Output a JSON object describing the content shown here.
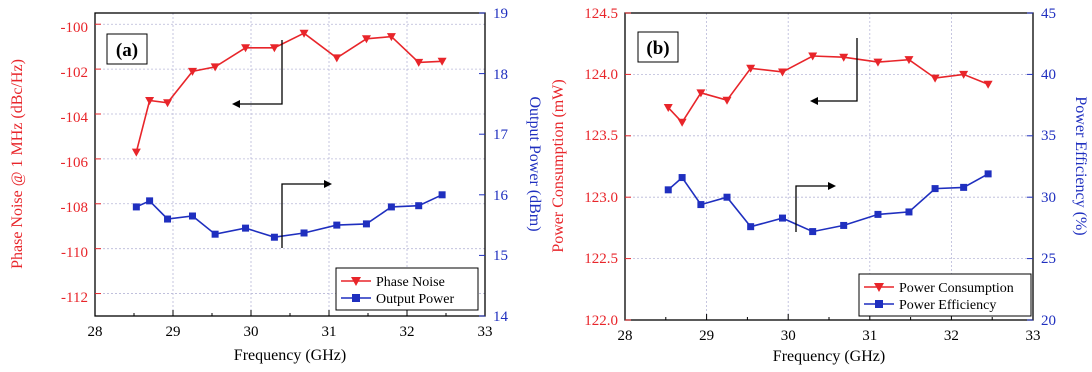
{
  "chart_data": [
    {
      "type": "line",
      "panel_label": "(a)",
      "xlabel": "Frequency (GHz)",
      "xlim": [
        28,
        33
      ],
      "xticks": [
        "28",
        "29",
        "30",
        "31",
        "32",
        "33"
      ],
      "x": [
        28.53,
        28.7,
        28.93,
        29.25,
        29.54,
        29.93,
        30.3,
        30.68,
        31.1,
        31.48,
        31.8,
        32.15,
        32.45
      ],
      "left_axis": {
        "label": "Phase Noise @ 1 MHz (dBc/Hz)",
        "color": "#e8252a",
        "ylim": [
          -113,
          -99.5
        ],
        "ticks": [
          "-112",
          "-110",
          "-108",
          "-106",
          "-104",
          "-102",
          "-100"
        ]
      },
      "right_axis": {
        "label": "Output Power (dBm)",
        "color": "#1f2fbf",
        "ylim": [
          14,
          19
        ],
        "ticks": [
          "14",
          "15",
          "16",
          "17",
          "18",
          "19"
        ]
      },
      "series": [
        {
          "name": "Phase Noise",
          "axis": "left",
          "color": "#e8252a",
          "marker": "triangle-down",
          "values": [
            -105.7,
            -103.4,
            -103.5,
            -102.1,
            -101.9,
            -101.05,
            -101.05,
            -100.4,
            -101.5,
            -100.65,
            -100.55,
            -101.7,
            -101.65
          ]
        },
        {
          "name": "Output Power",
          "axis": "right",
          "color": "#1f2fbf",
          "marker": "square",
          "values": [
            15.8,
            15.9,
            15.6,
            15.65,
            15.35,
            15.45,
            15.3,
            15.37,
            15.5,
            15.52,
            15.8,
            15.82,
            16.0
          ]
        }
      ],
      "grid": true,
      "legend_position": "bottom-right"
    },
    {
      "type": "line",
      "panel_label": "(b)",
      "xlabel": "Frequency (GHz)",
      "xlim": [
        28,
        33
      ],
      "xticks": [
        "28",
        "29",
        "30",
        "31",
        "32",
        "33"
      ],
      "x": [
        28.53,
        28.7,
        28.93,
        29.25,
        29.54,
        29.93,
        30.3,
        30.68,
        31.1,
        31.48,
        31.8,
        32.15,
        32.45
      ],
      "left_axis": {
        "label": "Power Consumption (mW)",
        "color": "#e8252a",
        "ylim": [
          122.0,
          124.5
        ],
        "ticks": [
          "122.0",
          "122.5",
          "123.0",
          "123.5",
          "124.0",
          "124.5"
        ]
      },
      "right_axis": {
        "label": "Power Efficiency (%)",
        "color": "#1f2fbf",
        "ylim": [
          20,
          45
        ],
        "ticks": [
          "20",
          "25",
          "30",
          "35",
          "40",
          "45"
        ]
      },
      "series": [
        {
          "name": "Power Consumption",
          "axis": "left",
          "color": "#e8252a",
          "marker": "triangle-down",
          "values": [
            123.73,
            123.61,
            123.85,
            123.79,
            124.05,
            124.02,
            124.15,
            124.14,
            124.1,
            124.12,
            123.97,
            124.0,
            123.92
          ]
        },
        {
          "name": "Power Efficiency",
          "axis": "right",
          "color": "#1f2fbf",
          "marker": "square",
          "values": [
            30.6,
            31.6,
            29.4,
            30.0,
            27.6,
            28.3,
            27.2,
            27.7,
            28.6,
            28.8,
            30.7,
            30.8,
            31.9
          ]
        }
      ],
      "grid": true,
      "legend_position": "bottom-right"
    }
  ]
}
